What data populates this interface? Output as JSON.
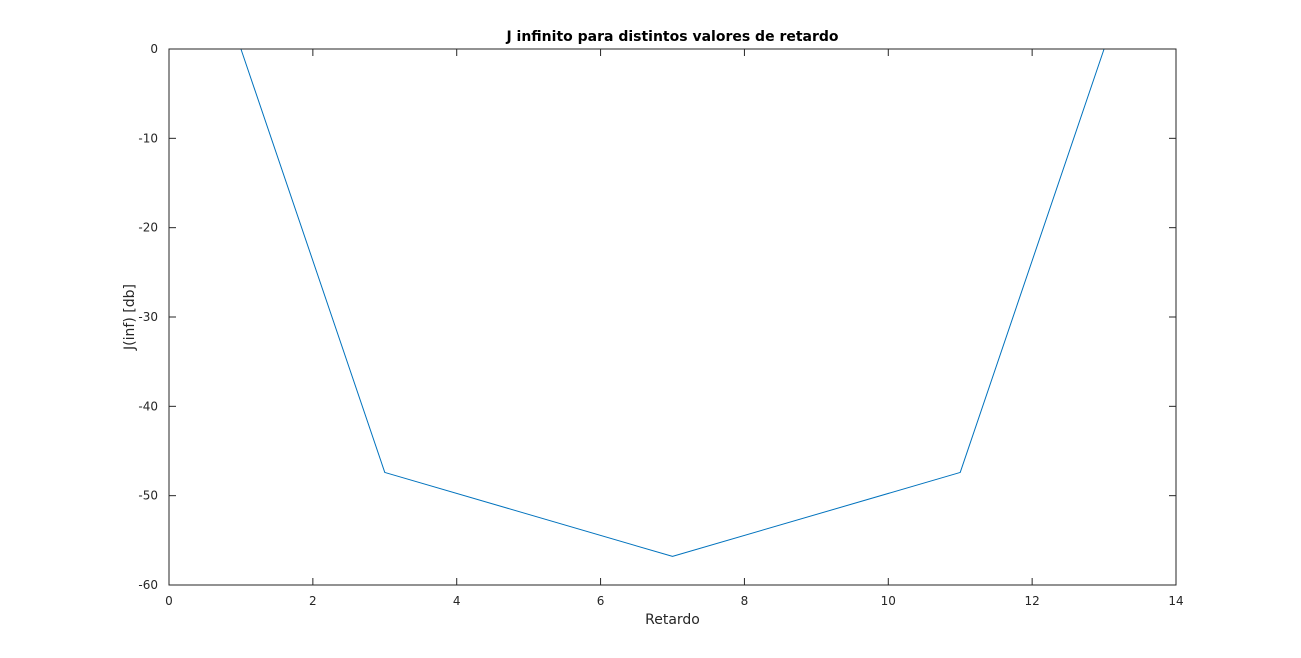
{
  "chart_data": {
    "type": "line",
    "title": "J infinito para distintos valores de retardo",
    "xlabel": "Retardo",
    "ylabel": "J(inf) [db]",
    "xlim": [
      0,
      14
    ],
    "ylim": [
      -60,
      0
    ],
    "xticks": [
      0,
      2,
      4,
      6,
      8,
      10,
      12,
      14
    ],
    "yticks": [
      0,
      -10,
      -20,
      -30,
      -40,
      -50,
      -60
    ],
    "xtick_labels": [
      "0",
      "2",
      "4",
      "6",
      "8",
      "10",
      "12",
      "14"
    ],
    "ytick_labels": [
      "0",
      "-10",
      "-20",
      "-30",
      "-40",
      "-50",
      "-60"
    ],
    "grid": false,
    "series": [
      {
        "color": "#0072bd",
        "x": [
          1,
          3,
          7,
          11,
          13
        ],
        "y": [
          0,
          -47.4,
          -56.8,
          -47.4,
          0
        ]
      }
    ]
  }
}
